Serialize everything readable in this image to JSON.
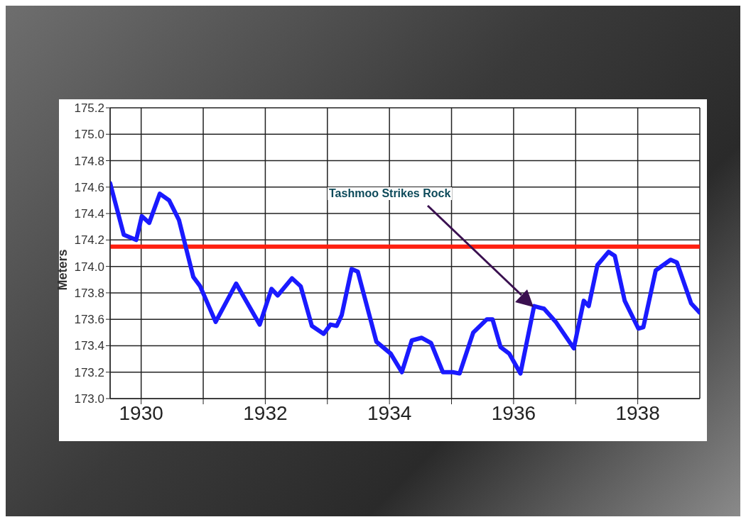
{
  "chart_data": {
    "type": "line",
    "ylabel": "Meters",
    "x": [
      1929.5,
      1929.72,
      1929.92,
      1930.01,
      1930.13,
      1930.3,
      1930.45,
      1930.61,
      1930.84,
      1930.95,
      1931.2,
      1931.53,
      1931.91,
      1932.1,
      1932.2,
      1932.43,
      1932.57,
      1932.75,
      1932.94,
      1933.05,
      1933.15,
      1933.23,
      1933.39,
      1933.49,
      1933.79,
      1934.02,
      1934.2,
      1934.36,
      1934.52,
      1934.67,
      1934.86,
      1935.02,
      1935.13,
      1935.35,
      1935.57,
      1935.66,
      1935.79,
      1935.93,
      1936.11,
      1936.33,
      1936.49,
      1936.68,
      1936.97,
      1937.13,
      1937.21,
      1937.35,
      1937.53,
      1937.63,
      1937.79,
      1938.01,
      1938.09,
      1938.29,
      1938.53,
      1938.63,
      1938.86,
      1939.0
    ],
    "series": [
      {
        "color": "#1a1aff",
        "values": [
          174.63,
          174.24,
          174.2,
          174.38,
          174.33,
          174.55,
          174.5,
          174.35,
          173.92,
          173.85,
          173.58,
          173.87,
          173.56,
          173.83,
          173.78,
          173.91,
          173.85,
          173.55,
          173.49,
          173.56,
          173.55,
          173.63,
          173.98,
          173.96,
          173.43,
          173.34,
          173.2,
          173.44,
          173.46,
          173.42,
          173.2,
          173.2,
          173.19,
          173.5,
          173.6,
          173.6,
          173.39,
          173.34,
          173.19,
          173.7,
          173.68,
          173.58,
          173.38,
          173.74,
          173.7,
          174.01,
          174.11,
          174.08,
          173.74,
          173.53,
          173.54,
          173.97,
          174.05,
          174.03,
          173.72,
          173.65
        ]
      }
    ],
    "xlim": [
      1929.5,
      1939
    ],
    "xticks": [
      1930,
      {
        "value": 1931,
        "label": null
      },
      1932,
      {
        "value": 1933,
        "label": null
      },
      1934,
      {
        "value": 1935,
        "label": null
      },
      1936,
      {
        "value": 1937,
        "label": null
      },
      1938
    ],
    "ylim": [
      173,
      175.2
    ],
    "yticks": [
      {
        "value": 173,
        "label": "173.0"
      },
      173.2,
      173.4,
      173.6,
      173.8,
      {
        "value": 174,
        "label": "174.0"
      },
      174.2,
      174.4,
      174.6,
      174.8,
      {
        "value": 175,
        "label": "175.0"
      },
      175.2
    ],
    "grid": true,
    "marker": "none",
    "line_style": "solid",
    "ref_lines": [
      {
        "axis": "y",
        "value": 174.15,
        "color": "#ff2010"
      }
    ],
    "annotations": [
      "Tashmoo Strikes Rock"
    ]
  }
}
